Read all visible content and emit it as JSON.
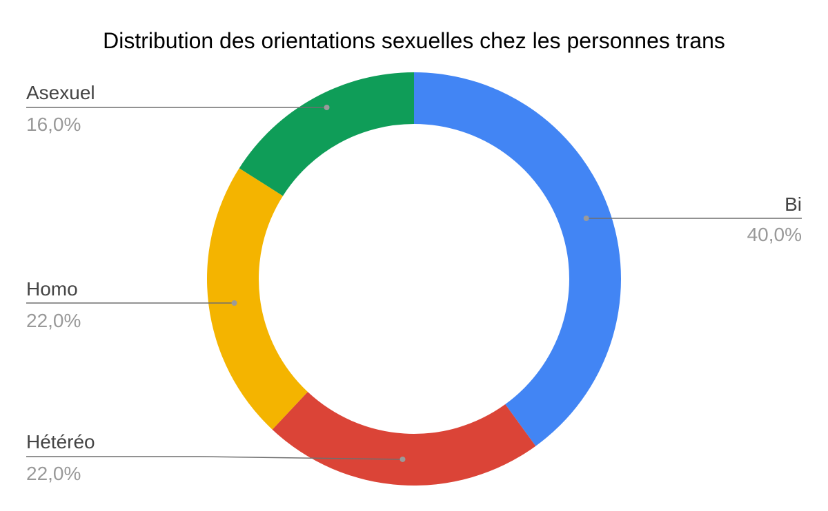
{
  "chart_data": {
    "type": "pie",
    "style": "donut",
    "title": "Distribution des orientations sexuelles chez les personnes trans",
    "slices": [
      {
        "label": "Bi",
        "value": 40.0,
        "display": "40,0%",
        "color": "#4285F4"
      },
      {
        "label": "Hétéréo",
        "value": 22.0,
        "display": "22,0%",
        "color": "#DB4437"
      },
      {
        "label": "Homo",
        "value": 22.0,
        "display": "22,0%",
        "color": "#F4B400"
      },
      {
        "label": "Asexuel",
        "value": 16.0,
        "display": "16,0%",
        "color": "#0F9D58"
      }
    ],
    "legend": "none"
  }
}
